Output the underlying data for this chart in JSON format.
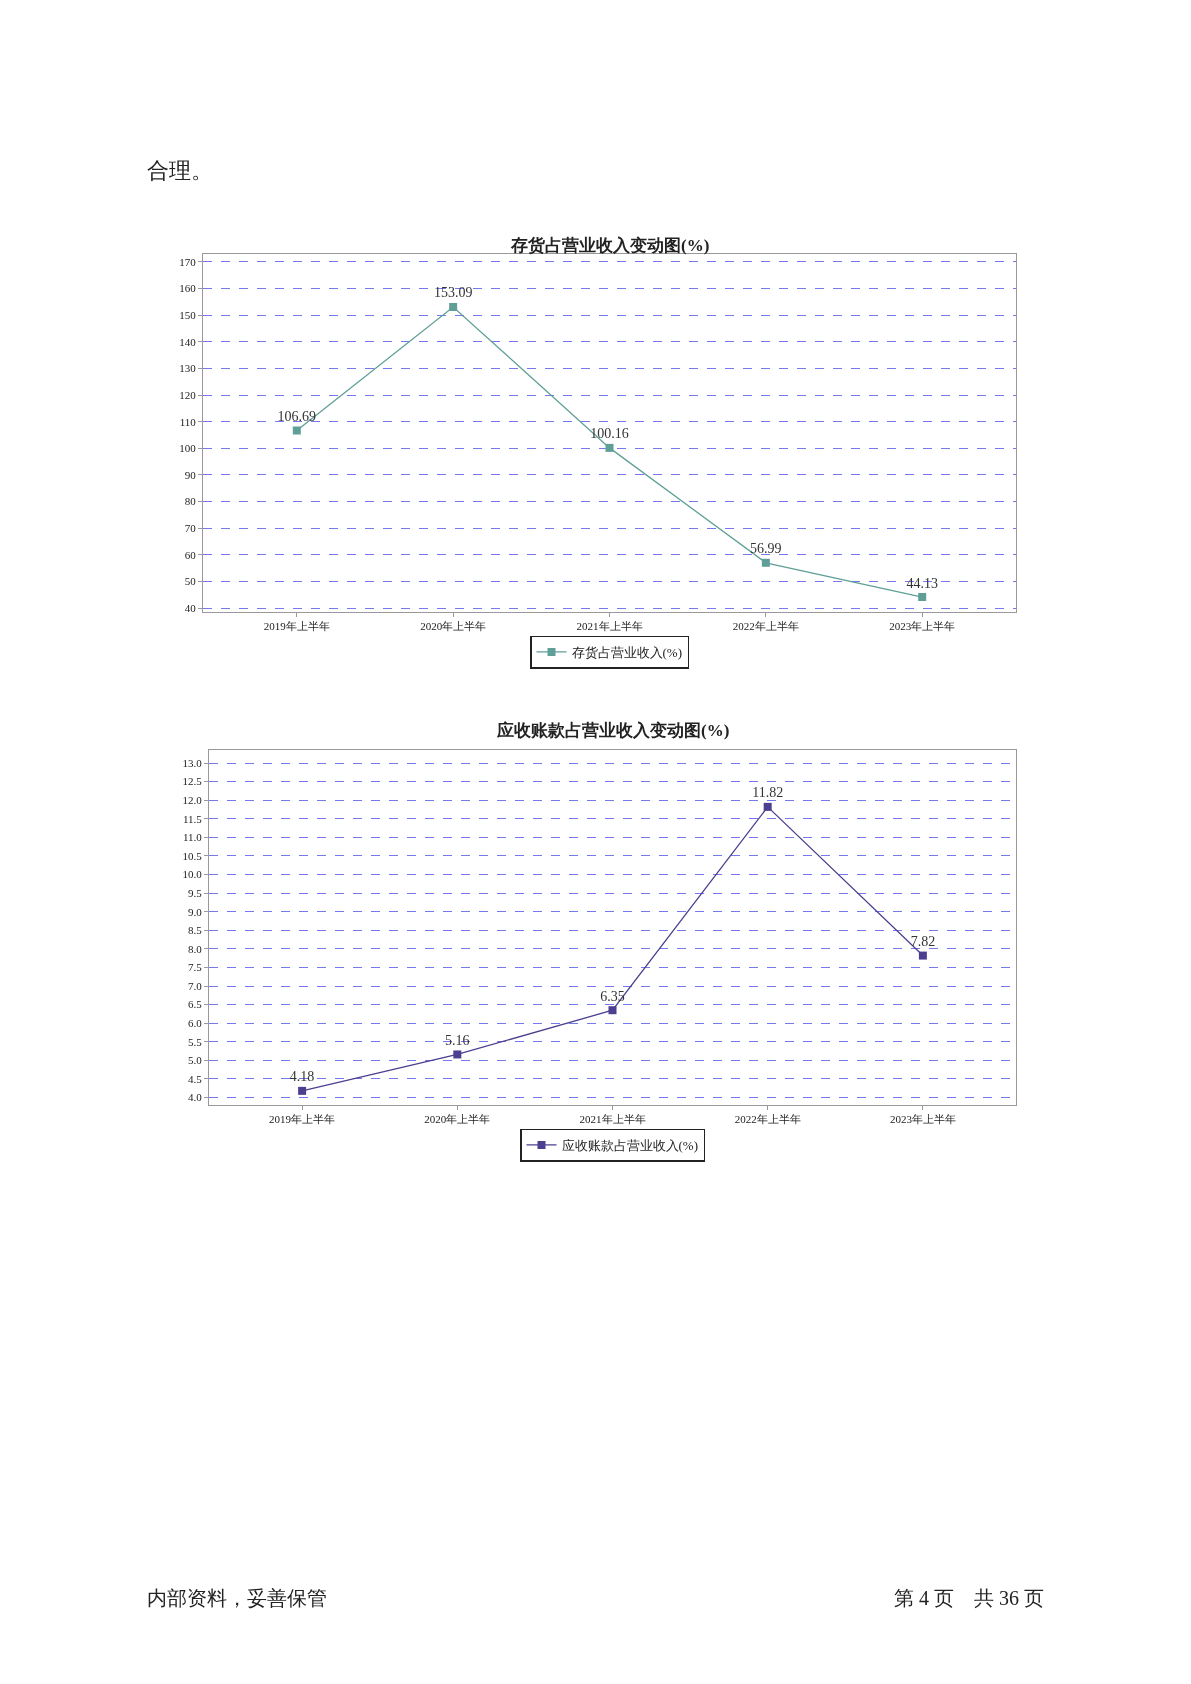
{
  "chart_data": [
    {
      "type": "line",
      "title": "存货占营业收入变动图(%)",
      "categories": [
        "2019年上半年",
        "2020年上半年",
        "2021年上半年",
        "2022年上半年",
        "2023年上半年"
      ],
      "series": [
        {
          "name": "存货占营业收入(%)",
          "color": "#5f9f97",
          "values": [
            106.69,
            153.09,
            100.16,
            56.99,
            44.13
          ]
        }
      ],
      "ylim": [
        38.5,
        173
      ],
      "yticks": [
        40,
        50,
        60,
        70,
        80,
        90,
        100,
        110,
        120,
        130,
        140,
        150,
        160,
        170
      ],
      "grid": "y",
      "legend": "bottom",
      "marker": "square",
      "line_style": "solid",
      "data_labels": true,
      "annotations": [
        "合理。"
      ]
    },
    {
      "type": "line",
      "title": "应收账款占营业收入变动图(%)",
      "categories": [
        "2019年上半年",
        "2020年上半年",
        "2021年上半年",
        "2022年上半年",
        "2023年上半年"
      ],
      "series": [
        {
          "name": "应收账款占营业收入(%)",
          "color": "#4b3f8f",
          "values": [
            4.18,
            5.16,
            6.35,
            11.82,
            7.82
          ]
        }
      ],
      "ylim": [
        3.8,
        13.35
      ],
      "yticks": [
        {
          "value": 4,
          "label": "4.0"
        },
        4.5,
        {
          "value": 5,
          "label": "5.0"
        },
        5.5,
        {
          "value": 6,
          "label": "6.0"
        },
        6.5,
        {
          "value": 7,
          "label": "7.0"
        },
        7.5,
        {
          "value": 8,
          "label": "8.0"
        },
        8.5,
        {
          "value": 9,
          "label": "9.0"
        },
        9.5,
        {
          "value": 10,
          "label": "10.0"
        },
        10.5,
        {
          "value": 11,
          "label": "11.0"
        },
        11.5,
        {
          "value": 12,
          "label": "12.0"
        },
        12.5,
        {
          "value": 13,
          "label": "13.0"
        }
      ],
      "grid": "y",
      "legend": "bottom",
      "marker": "square",
      "line_style": "solid",
      "data_labels": true,
      "annotations": [
        "内部资料，妥善保管",
        "第 4 页　共 36 页"
      ]
    }
  ]
}
